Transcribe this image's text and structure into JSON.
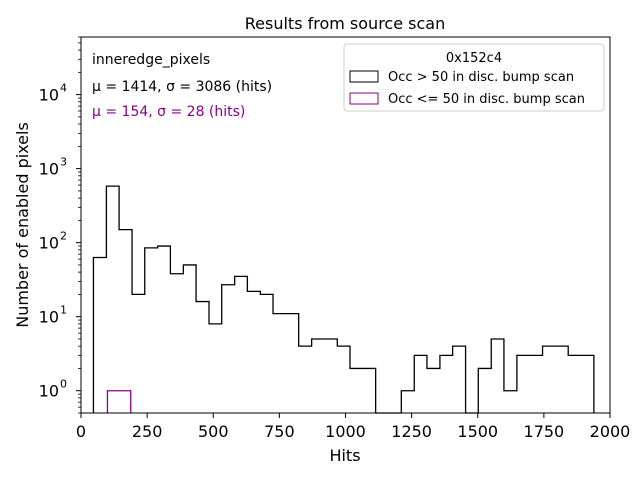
{
  "chart_data": {
    "type": "histogram",
    "title": "Results from source scan",
    "xlabel": "Hits",
    "ylabel": "Number of enabled pixels",
    "xlim": [
      0,
      2000
    ],
    "ylim": [
      0.5,
      60000
    ],
    "yscale": "log",
    "grid": false,
    "x_ticks": [
      0,
      250,
      500,
      750,
      1000,
      1250,
      1500,
      1750,
      2000
    ],
    "y_ticks": [
      {
        "value": 1,
        "base": "10",
        "exp": "0"
      },
      {
        "value": 10,
        "base": "10",
        "exp": "1"
      },
      {
        "value": 100,
        "base": "10",
        "exp": "2"
      },
      {
        "value": 1000,
        "base": "10",
        "exp": "3"
      },
      {
        "value": 10000,
        "base": "10",
        "exp": "4"
      }
    ],
    "annotations": {
      "label": "inneredge_pixels",
      "stats_series1": "μ = 1414, σ = 3086 (hits)",
      "stats_series2": "μ = 154, σ = 28 (hits)",
      "stats_series2_color": "#8b008b"
    },
    "legend": {
      "title": "0x152c4",
      "placement": "upper right"
    },
    "series": [
      {
        "name": "Occ > 50 in disc. bump scan",
        "color": "#000000",
        "bins": [
          [
            47,
            96,
            63
          ],
          [
            96,
            144,
            580
          ],
          [
            144,
            193,
            150
          ],
          [
            193,
            241,
            20
          ],
          [
            241,
            290,
            85
          ],
          [
            290,
            338,
            90
          ],
          [
            338,
            387,
            38
          ],
          [
            387,
            435,
            50
          ],
          [
            435,
            484,
            16
          ],
          [
            484,
            532,
            8
          ],
          [
            532,
            581,
            27
          ],
          [
            581,
            629,
            35
          ],
          [
            629,
            678,
            22
          ],
          [
            678,
            726,
            20
          ],
          [
            726,
            775,
            11
          ],
          [
            775,
            823,
            11
          ],
          [
            823,
            872,
            4
          ],
          [
            872,
            920,
            5
          ],
          [
            920,
            969,
            5
          ],
          [
            969,
            1017,
            4
          ],
          [
            1017,
            1066,
            2
          ],
          [
            1066,
            1114,
            2
          ],
          [
            1114,
            1163,
            0
          ],
          [
            1163,
            1211,
            0
          ],
          [
            1211,
            1260,
            1
          ],
          [
            1260,
            1308,
            3
          ],
          [
            1308,
            1357,
            2
          ],
          [
            1357,
            1405,
            3
          ],
          [
            1405,
            1454,
            4
          ],
          [
            1454,
            1502,
            0
          ],
          [
            1502,
            1551,
            2
          ],
          [
            1551,
            1599,
            5
          ],
          [
            1599,
            1648,
            1
          ],
          [
            1648,
            1696,
            3
          ],
          [
            1696,
            1745,
            3
          ],
          [
            1745,
            1793,
            4
          ],
          [
            1793,
            1842,
            4
          ],
          [
            1842,
            1890,
            3
          ],
          [
            1890,
            1939,
            3
          ]
        ]
      },
      {
        "name": "Occ <= 50 in disc. bump scan",
        "color": "#8b008b",
        "bins": [
          [
            100,
            188,
            1
          ]
        ]
      }
    ]
  }
}
